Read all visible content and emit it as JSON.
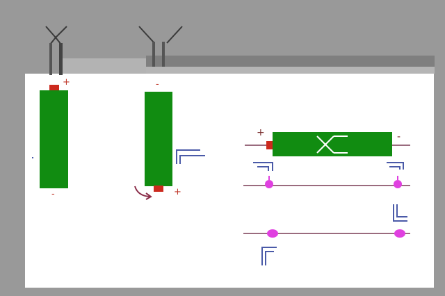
{
  "colors": {
    "background": "#999999",
    "card": "#ffffff",
    "band_light": "#b3b3b3",
    "band_dark": "#7f7f7f",
    "band_strip": "#b5b5b5",
    "component_body": "#118c11",
    "terminal": "#cc2a1e",
    "sign": "#c0392b",
    "wire": "#9a6b7e",
    "junction": "#e040e0",
    "bracket": "#4a5aa8",
    "lead": "#444444",
    "arrow": "#8b2e4a"
  },
  "icons": {
    "top_left_lead": "y-fork-lead-icon",
    "top_mid_lead": "y-fork-lead-icon",
    "arrow": "curved-arrow-icon",
    "component_mark": "crossover-symbol-icon",
    "corner": "corner-bracket-icon"
  },
  "components": {
    "vertical_left": {
      "top_sign": "+",
      "bottom_sign": "-"
    },
    "vertical_mid": {
      "top_sign": "-",
      "bottom_sign": "+"
    },
    "horizontal": {
      "left_sign": "+",
      "right_sign": "-"
    }
  }
}
